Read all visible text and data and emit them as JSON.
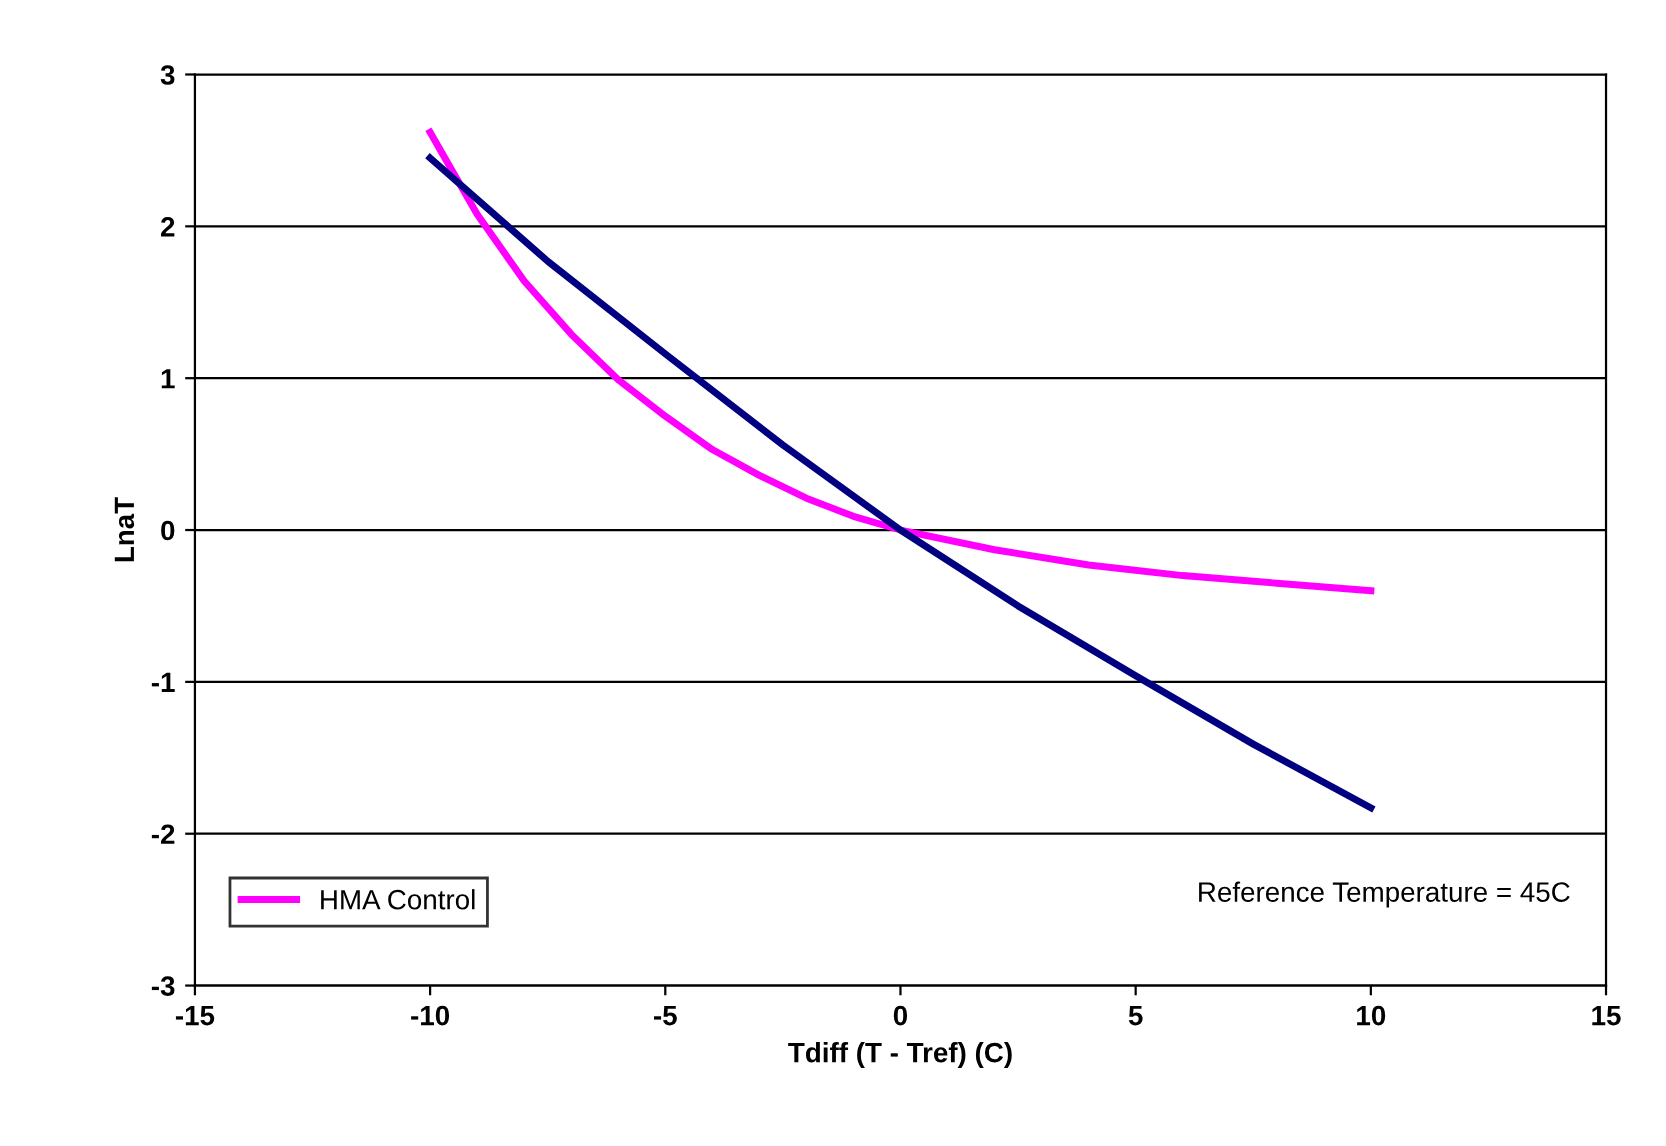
{
  "chart_data": {
    "type": "line",
    "xlabel": "Tdiff (T - Tref) (C)",
    "ylabel": "LnaT",
    "xlim": [
      -15,
      15
    ],
    "xticks": [
      -15,
      -10,
      -5,
      0,
      5,
      10,
      15
    ],
    "ylim": [
      -3,
      3
    ],
    "yticks": [
      -3,
      -2,
      -1,
      0,
      1,
      2,
      3
    ],
    "grid": "y",
    "legend": "bottom left",
    "marker": "none",
    "line_style": "solid",
    "annotations": [
      "Reference Temperature = 45C"
    ],
    "series": [
      {
        "name": "HMA Control",
        "color": "#ff00ff",
        "x": [
          -10,
          -9,
          -8,
          -7,
          -6,
          -5,
          -4,
          -3,
          -2,
          -1,
          0,
          2,
          4,
          6,
          8,
          10
        ],
        "values": [
          2.62,
          2.08,
          1.64,
          1.29,
          0.99,
          0.75,
          0.53,
          0.36,
          0.21,
          0.09,
          0,
          -0.13,
          -0.23,
          -0.3,
          -0.35,
          -0.4
        ]
      },
      {
        "color": "#000080",
        "x": [
          -10,
          -7.5,
          -5,
          -2.5,
          0,
          2.5,
          5,
          7.5,
          10
        ],
        "values": [
          2.45,
          1.77,
          1.16,
          0.56,
          0,
          -0.5,
          -0.96,
          -1.41,
          -1.83
        ]
      }
    ]
  }
}
